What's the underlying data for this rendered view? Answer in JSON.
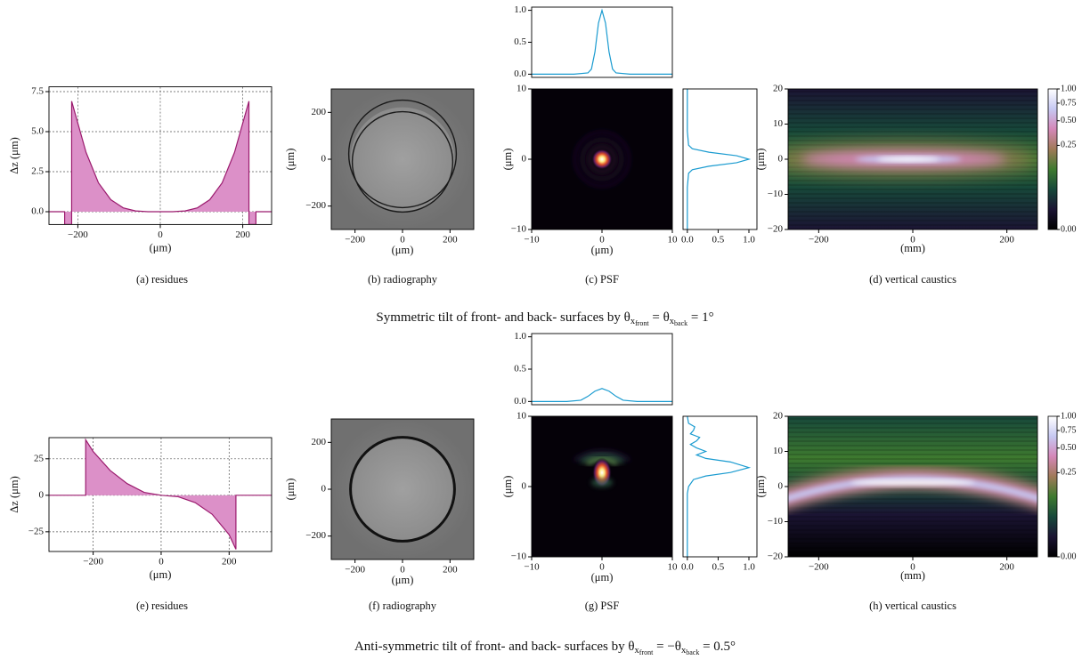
{
  "rows": [
    {
      "caption": [
        {
          "text": "Symmetric tilt of front- and back- surfaces by θ",
          "level": 0
        },
        {
          "text": "x",
          "level": 1
        },
        {
          "text": "front",
          "level": 2
        },
        {
          "text": " = θ",
          "level": 0
        },
        {
          "text": "x",
          "level": 1
        },
        {
          "text": "back",
          "level": 2
        },
        {
          "text": " = 1°",
          "level": 0
        }
      ],
      "residues": {
        "type": "area",
        "caption": "(a) residues",
        "ylabel": "Δz (μm)",
        "xlabel": "(μm)",
        "color": "#9b1b6e",
        "fill": "#dc90c8",
        "x": [
          -270,
          -232,
          -232,
          -215,
          -215,
          -180,
          -150,
          -120,
          -90,
          -60,
          -30,
          0,
          30,
          60,
          90,
          120,
          150,
          180,
          215,
          215,
          232,
          232,
          270
        ],
        "values": [
          0,
          0,
          -0.8,
          -0.8,
          6.9,
          3.7,
          1.8,
          0.75,
          0.24,
          0.05,
          0,
          0,
          0,
          0.05,
          0.24,
          0.75,
          1.8,
          3.7,
          6.9,
          -0.8,
          -0.8,
          0,
          0
        ],
        "xlim": [
          -270,
          270
        ],
        "ylim": [
          -0.8,
          7.8
        ],
        "xticks": [
          {
            "value": -200,
            "label": "−200"
          },
          0,
          200
        ],
        "yticks": [
          {
            "value": 0,
            "label": "0.0"
          },
          {
            "value": 2.5,
            "label": "2.5"
          },
          {
            "value": 5,
            "label": "5.0"
          },
          {
            "value": 7.5,
            "label": "7.5"
          }
        ],
        "grid": true
      },
      "radiography": {
        "type": "image",
        "caption": "(b) radiography",
        "xlabel": "(μm)",
        "ylabel": "(μm)",
        "xlim": [
          -300,
          300
        ],
        "ylim": [
          -300,
          300
        ],
        "xticks": [
          {
            "value": -200,
            "label": "−200"
          },
          0,
          200
        ],
        "yticks": [
          {
            "value": -200,
            "label": "−200"
          },
          0,
          200
        ]
      },
      "psf": {
        "type": "image",
        "caption": "(c) PSF",
        "xlabel": "(μm)",
        "ylabel": "(μm)",
        "xlim": [
          -10,
          10
        ],
        "ylim": [
          -10,
          10
        ],
        "xticks": [
          {
            "value": -10,
            "label": "−10"
          },
          0,
          10
        ],
        "yticks": [
          {
            "value": -10,
            "label": "−10"
          },
          0,
          10
        ],
        "top_profile": {
          "type": "line",
          "color": "#1a9bd0",
          "x": [
            -10,
            -4,
            -2,
            -1.5,
            -1,
            -0.5,
            0,
            0.5,
            1,
            1.5,
            2,
            4,
            10
          ],
          "values": [
            0,
            0,
            0.02,
            0.08,
            0.35,
            0.8,
            1.0,
            0.8,
            0.35,
            0.08,
            0.02,
            0,
            0
          ],
          "xlim": [
            -10,
            10
          ],
          "ylim": [
            -0.05,
            1.05
          ],
          "yticks": [
            {
              "value": 0,
              "label": "0.0"
            },
            {
              "value": 0.5,
              "label": "0.5"
            },
            {
              "value": 1,
              "label": "1.0"
            }
          ]
        },
        "side_profile": {
          "type": "line",
          "color": "#1a9bd0",
          "y": [
            -10,
            -4,
            -2,
            -1.5,
            -1,
            -0.5,
            0,
            0.5,
            1,
            1.5,
            2,
            4,
            10
          ],
          "values": [
            0,
            0,
            0.02,
            0.08,
            0.35,
            0.8,
            1.0,
            0.8,
            0.35,
            0.08,
            0.02,
            0,
            0
          ],
          "ylim": [
            -10,
            10
          ],
          "xlim": [
            -0.07,
            1.13
          ],
          "xticks": [
            {
              "value": 0,
              "label": "0.0"
            },
            {
              "value": 0.5,
              "label": "0.5"
            },
            {
              "value": 1,
              "label": "1.0"
            }
          ]
        }
      },
      "caustics": {
        "type": "heatmap",
        "caption": "(d) vertical caustics",
        "xlabel": "(mm)",
        "ylabel": "(μm)",
        "xlim": [
          -265,
          265
        ],
        "ylim": [
          -20,
          20
        ],
        "xticks": [
          {
            "value": -200,
            "label": "−200"
          },
          0,
          200
        ],
        "yticks": [
          {
            "value": -20,
            "label": "−20"
          },
          {
            "value": -10,
            "label": "−10"
          },
          0,
          10,
          20
        ],
        "colorbar": {
          "lim": [
            0,
            1
          ],
          "gamma": 0.37,
          "ticks": [
            {
              "value": 0,
              "label": "0.00"
            },
            {
              "value": 0.25,
              "label": "0.25"
            },
            {
              "value": 0.5,
              "label": "0.50"
            },
            {
              "value": 0.75,
              "label": "0.75"
            },
            {
              "value": 1,
              "label": "1.00"
            }
          ],
          "colormap": [
            "#000000",
            "#1b1433",
            "#17483a",
            "#3e7a2f",
            "#a07a58",
            "#d487b8",
            "#c6c8f2",
            "#ffffff"
          ]
        }
      }
    },
    {
      "caption": [
        {
          "text": "Anti-symmetric tilt of front- and back- surfaces by θ",
          "level": 0
        },
        {
          "text": "x",
          "level": 1
        },
        {
          "text": "front",
          "level": 2
        },
        {
          "text": " = −θ",
          "level": 0
        },
        {
          "text": "x",
          "level": 1
        },
        {
          "text": "back",
          "level": 2
        },
        {
          "text": " = 0.5°",
          "level": 0
        }
      ],
      "residues": {
        "type": "area",
        "caption": "(e) residues",
        "ylabel": "Δz (μm)",
        "xlabel": "(μm)",
        "color": "#9b1b6e",
        "fill": "#dc90c8",
        "x": [
          -330,
          -222,
          -222,
          -200,
          -150,
          -100,
          -50,
          0,
          50,
          100,
          150,
          200,
          220,
          220,
          325
        ],
        "values": [
          0,
          0,
          38,
          30,
          17,
          8,
          2,
          0,
          -1,
          -5,
          -13,
          -27,
          -37,
          0,
          0
        ],
        "xlim": [
          -330,
          325
        ],
        "ylim": [
          -38.5,
          39.5
        ],
        "xticks": [
          {
            "value": -200,
            "label": "−200"
          },
          0,
          200
        ],
        "yticks": [
          {
            "value": -25,
            "label": "−25"
          },
          0,
          25
        ],
        "grid": true
      },
      "radiography": {
        "type": "image",
        "caption": "(f) radiography",
        "xlabel": "(μm)",
        "ylabel": "(μm)",
        "xlim": [
          -300,
          300
        ],
        "ylim": [
          -300,
          300
        ],
        "xticks": [
          {
            "value": -200,
            "label": "−200"
          },
          0,
          200
        ],
        "yticks": [
          {
            "value": -200,
            "label": "−200"
          },
          0,
          200
        ]
      },
      "psf": {
        "type": "image",
        "caption": "(g) PSF",
        "xlabel": "(μm)",
        "ylabel": "(μm)",
        "xlim": [
          -10,
          10
        ],
        "ylim": [
          -10,
          10
        ],
        "xticks": [
          {
            "value": -10,
            "label": "−10"
          },
          0,
          10
        ],
        "yticks": [
          {
            "value": -10,
            "label": "−10"
          },
          0,
          10
        ],
        "top_profile": {
          "type": "line",
          "color": "#1a9bd0",
          "x": [
            -10,
            -5,
            -3,
            -2,
            -1,
            0,
            1,
            2,
            3,
            5,
            10
          ],
          "values": [
            0,
            0,
            0.02,
            0.08,
            0.16,
            0.2,
            0.16,
            0.08,
            0.02,
            0,
            0
          ],
          "xlim": [
            -10,
            10
          ],
          "ylim": [
            -0.05,
            1.05
          ],
          "yticks": [
            {
              "value": 0,
              "label": "0.0"
            },
            {
              "value": 0.5,
              "label": "0.5"
            },
            {
              "value": 1,
              "label": "1.0"
            }
          ]
        },
        "side_profile": {
          "type": "line",
          "color": "#1a9bd0",
          "y": [
            -10,
            -1,
            0,
            1,
            1.5,
            2,
            2.7,
            3.5,
            4,
            4.5,
            5,
            5.5,
            6,
            6.5,
            7,
            7.5,
            8,
            8.5,
            9,
            10
          ],
          "values": [
            0,
            0,
            0.02,
            0.1,
            0.3,
            0.7,
            1.0,
            0.7,
            0.3,
            0.15,
            0.3,
            0.15,
            0.05,
            0.15,
            0.2,
            0.05,
            0.1,
            0.12,
            0.02,
            0
          ],
          "ylim": [
            -10,
            10
          ],
          "xlim": [
            -0.07,
            1.13
          ],
          "xticks": [
            {
              "value": 0,
              "label": "0.0"
            },
            {
              "value": 0.5,
              "label": "0.5"
            },
            {
              "value": 1,
              "label": "1.0"
            }
          ]
        }
      },
      "caustics": {
        "type": "heatmap",
        "caption": "(h) vertical caustics",
        "xlabel": "(mm)",
        "ylabel": "(μm)",
        "xlim": [
          -265,
          265
        ],
        "ylim": [
          -20,
          20
        ],
        "xticks": [
          {
            "value": -200,
            "label": "−200"
          },
          0,
          200
        ],
        "yticks": [
          {
            "value": -20,
            "label": "−20"
          },
          {
            "value": -10,
            "label": "−10"
          },
          0,
          10,
          20
        ],
        "colorbar": {
          "lim": [
            0,
            1
          ],
          "gamma": 0.37,
          "ticks": [
            {
              "value": 0,
              "label": "0.00"
            },
            {
              "value": 0.25,
              "label": "0.25"
            },
            {
              "value": 0.5,
              "label": "0.50"
            },
            {
              "value": 0.75,
              "label": "0.75"
            },
            {
              "value": 1,
              "label": "1.00"
            }
          ],
          "colormap": [
            "#000000",
            "#1b1433",
            "#17483a",
            "#3e7a2f",
            "#a07a58",
            "#d487b8",
            "#c6c8f2",
            "#ffffff"
          ]
        }
      }
    }
  ]
}
